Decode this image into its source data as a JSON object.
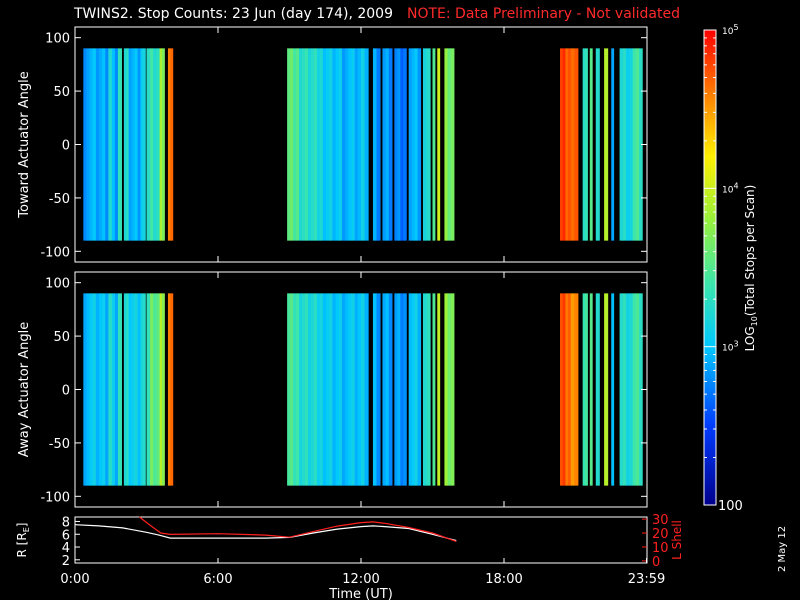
{
  "title": "TWINS2. Stop Counts: 23 Jun (day 174), 2009",
  "note": "NOTE: Data Preliminary - Not validated",
  "datestamp": "2 May 12",
  "chart_data": [
    {
      "type": "heatmap",
      "panel": "toward",
      "ylabel": "Toward Actuator Angle",
      "ylim": [
        -110,
        110
      ],
      "yticks": [
        "100",
        "50",
        "0",
        "-50",
        "-100"
      ],
      "ytick_values": [
        100,
        50,
        0,
        -50,
        -100
      ],
      "data_ylim": [
        -90,
        90
      ],
      "xlim_hours": [
        0,
        24
      ],
      "log_counts_segments": [
        [
          0.35,
          1.4,
          2.9
        ],
        [
          1.4,
          1.55,
          3.1
        ],
        [
          1.55,
          1.8,
          2.9
        ],
        [
          1.8,
          1.95,
          3.3
        ],
        [
          2.05,
          2.25,
          3.2
        ],
        [
          2.25,
          2.75,
          2.9
        ],
        [
          2.75,
          2.95,
          3.15
        ],
        [
          3.0,
          3.15,
          3.4
        ],
        [
          3.15,
          3.55,
          3.3
        ],
        [
          3.55,
          3.75,
          3.8
        ],
        [
          3.9,
          4.1,
          4.55
        ],
        [
          8.9,
          9.4,
          3.55
        ],
        [
          9.4,
          10.4,
          3.25
        ],
        [
          10.4,
          11.2,
          3.05
        ],
        [
          11.2,
          12.0,
          2.95
        ],
        [
          12.0,
          12.3,
          3.0
        ],
        [
          12.5,
          12.8,
          2.85
        ],
        [
          12.9,
          13.3,
          2.8
        ],
        [
          13.4,
          13.9,
          2.75
        ],
        [
          14.0,
          14.5,
          2.9
        ],
        [
          14.6,
          14.9,
          3.25
        ],
        [
          15.0,
          15.1,
          3.6
        ],
        [
          15.2,
          15.3,
          3.9
        ],
        [
          15.5,
          15.9,
          3.7
        ],
        [
          20.35,
          20.8,
          4.75
        ],
        [
          20.8,
          21.1,
          4.65
        ],
        [
          21.3,
          21.5,
          3.3
        ],
        [
          21.6,
          21.7,
          3.6
        ],
        [
          21.85,
          22.0,
          3.35
        ],
        [
          22.2,
          22.35,
          3.8
        ],
        [
          22.5,
          22.6,
          2.8
        ],
        [
          22.85,
          23.4,
          3.15
        ],
        [
          23.4,
          23.8,
          3.4
        ]
      ]
    },
    {
      "type": "heatmap",
      "panel": "away",
      "ylabel": "Away Actuator Angle",
      "ylim": [
        -110,
        110
      ],
      "yticks": [
        "100",
        "50",
        "0",
        "-50",
        "-100"
      ],
      "ytick_values": [
        100,
        50,
        0,
        -50,
        -100
      ],
      "data_ylim": [
        -90,
        90
      ],
      "xlim_hours": [
        0,
        24
      ],
      "log_counts_segments": [
        [
          0.35,
          1.4,
          3.0
        ],
        [
          1.4,
          1.55,
          3.15
        ],
        [
          1.55,
          1.8,
          3.0
        ],
        [
          1.8,
          1.95,
          3.3
        ],
        [
          2.05,
          2.25,
          3.2
        ],
        [
          2.25,
          2.75,
          3.05
        ],
        [
          2.75,
          2.95,
          3.25
        ],
        [
          3.0,
          3.15,
          3.45
        ],
        [
          3.15,
          3.55,
          3.55
        ],
        [
          3.55,
          3.75,
          3.85
        ],
        [
          3.9,
          4.1,
          4.55
        ],
        [
          8.9,
          9.4,
          3.45
        ],
        [
          9.4,
          10.4,
          3.2
        ],
        [
          10.4,
          11.2,
          3.05
        ],
        [
          11.2,
          12.0,
          3.0
        ],
        [
          12.0,
          12.3,
          3.0
        ],
        [
          12.5,
          12.8,
          2.9
        ],
        [
          12.9,
          13.3,
          2.85
        ],
        [
          13.4,
          13.9,
          2.85
        ],
        [
          14.0,
          14.5,
          3.0
        ],
        [
          14.6,
          14.9,
          3.3
        ],
        [
          15.0,
          15.1,
          3.6
        ],
        [
          15.2,
          15.3,
          3.85
        ],
        [
          15.5,
          15.9,
          3.75
        ],
        [
          20.35,
          20.8,
          4.7
        ],
        [
          20.8,
          21.1,
          4.5
        ],
        [
          21.3,
          21.5,
          3.4
        ],
        [
          21.6,
          21.7,
          3.6
        ],
        [
          21.85,
          22.0,
          3.35
        ],
        [
          22.2,
          22.35,
          3.8
        ],
        [
          22.5,
          22.6,
          2.9
        ],
        [
          22.85,
          23.4,
          3.2
        ],
        [
          23.4,
          23.8,
          3.4
        ]
      ]
    },
    {
      "type": "line",
      "panel": "orbit",
      "ylabel": "R [R",
      "ylabel_sub": "E",
      "ylabel_end": "]",
      "yticks": [
        "8",
        "6",
        "4",
        "2"
      ],
      "ytick_values": [
        8,
        6,
        4,
        2
      ],
      "ylim": [
        1.5,
        8.7
      ],
      "ylabel_right": "L Shell",
      "yticks_right": [
        "30",
        "20",
        "10",
        "0"
      ],
      "ytick_values_right": [
        30,
        20,
        10,
        0
      ],
      "ylim_right": [
        -1.5,
        31.5
      ],
      "xlabel": "Time (UT)",
      "xticks": [
        "0:00",
        "6:00",
        "12:00",
        "18:00",
        "23:59"
      ],
      "xtick_values": [
        0,
        6,
        12,
        18,
        23.98
      ],
      "xlim": [
        0,
        24
      ],
      "series": [
        {
          "axis": "left",
          "color": "#ffffff",
          "x": [
            0,
            1,
            2,
            3,
            3.5,
            4,
            5,
            6,
            7,
            8,
            9,
            10,
            11,
            12,
            12.5,
            13,
            14,
            15,
            16
          ],
          "y": [
            7.5,
            7.3,
            7.0,
            6.3,
            5.9,
            5.4,
            5.4,
            5.4,
            5.4,
            5.4,
            5.5,
            6.2,
            6.8,
            7.2,
            7.3,
            7.2,
            6.9,
            6.0,
            5.0
          ]
        },
        {
          "axis": "right",
          "color": "#ff2020",
          "x": [
            2.7,
            3.2,
            3.6,
            4.0,
            6,
            8,
            9,
            10,
            11,
            12,
            12.5,
            13,
            14,
            15,
            16
          ],
          "y": [
            32,
            25,
            20,
            19,
            19.5,
            18.5,
            17,
            21,
            25,
            27.5,
            28,
            27,
            24,
            20,
            14
          ]
        }
      ]
    }
  ],
  "colorbar": {
    "label": "LOG",
    "label_sub": "10",
    "label_rest": "(Total Stops per Scan)",
    "ticks": [
      "10",
      "10",
      "10",
      "100"
    ],
    "tick_sup": [
      "5",
      "4",
      "3",
      ""
    ],
    "tick_values": [
      5,
      4,
      3,
      2
    ],
    "range": [
      2,
      5
    ]
  }
}
